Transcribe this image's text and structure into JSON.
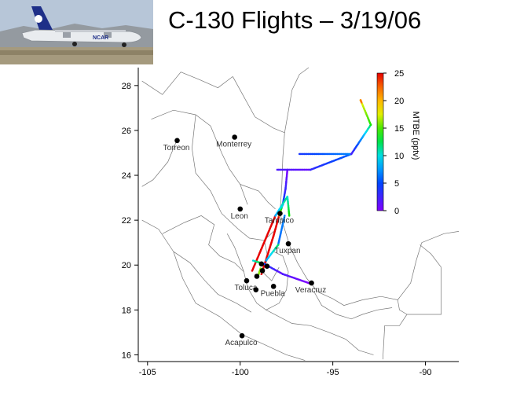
{
  "slide": {
    "title": "C-130 Flights – 3/19/06"
  },
  "photo": {
    "tail_text": "NCAR",
    "colors": {
      "sky": "#b7c6d8",
      "ground": "#a59a7e",
      "aircraft_body": "#e9ecef",
      "aircraft_tail": "#1e2f88"
    }
  },
  "chart_data": {
    "type": "scatter",
    "title": "",
    "xlabel": "",
    "ylabel": "",
    "xlim": [
      -105.5,
      -88.2
    ],
    "ylim": [
      15.7,
      28.8
    ],
    "xticks": [
      -105,
      -100,
      -95,
      -90
    ],
    "yticks": [
      16,
      18,
      20,
      22,
      24,
      26,
      28
    ],
    "grid": false,
    "colorbar": {
      "label": "MTBE (pptv)",
      "min": 0,
      "max": 25,
      "ticks": [
        0,
        5,
        10,
        15,
        20,
        25
      ],
      "colormap": "rainbow"
    },
    "cities": [
      {
        "name": "Torreon",
        "lon": -103.4,
        "lat": 25.55
      },
      {
        "name": "Monterrey",
        "lon": -100.3,
        "lat": 25.7
      },
      {
        "name": "Leon",
        "lon": -100.0,
        "lat": 22.5
      },
      {
        "name": "Tampico",
        "lon": -97.85,
        "lat": 22.3
      },
      {
        "name": "Tuxpan",
        "lon": -97.4,
        "lat": 20.95
      },
      {
        "name": "Toluca",
        "lon": -99.65,
        "lat": 19.3
      },
      {
        "name": "Puebla",
        "lon": -98.2,
        "lat": 19.05
      },
      {
        "name": "Veracruz",
        "lon": -96.15,
        "lat": 19.2
      },
      {
        "name": "Acapulco",
        "lon": -99.9,
        "lat": 16.85
      },
      {
        "name": "",
        "lon": -99.1,
        "lat": 19.5
      },
      {
        "name": "",
        "lon": -98.8,
        "lat": 19.75
      },
      {
        "name": "",
        "lon": -98.85,
        "lat": 20.05
      },
      {
        "name": "",
        "lon": -99.15,
        "lat": 18.9
      },
      {
        "name": "",
        "lon": -98.55,
        "lat": 19.95
      }
    ],
    "flight_legs": [
      {
        "from": [
          -98.85,
          19.6
        ],
        "to": [
          -98.2,
          21.3
        ],
        "mtbe": [
          25,
          25
        ]
      },
      {
        "from": [
          -98.2,
          21.3
        ],
        "to": [
          -97.9,
          22.2
        ],
        "mtbe": [
          25,
          25
        ]
      },
      {
        "from": [
          -97.9,
          22.2
        ],
        "to": [
          -97.7,
          22.7
        ],
        "mtbe": [
          22,
          8
        ]
      },
      {
        "from": [
          -97.7,
          22.7
        ],
        "to": [
          -97.55,
          23.4
        ],
        "mtbe": [
          6,
          2
        ]
      },
      {
        "from": [
          -97.55,
          23.4
        ],
        "to": [
          -97.45,
          24.25
        ],
        "mtbe": [
          3,
          0
        ]
      },
      {
        "from": [
          -98.0,
          24.25
        ],
        "to": [
          -96.2,
          24.25
        ],
        "mtbe": [
          2,
          1
        ]
      },
      {
        "from": [
          -96.2,
          24.25
        ],
        "to": [
          -94.0,
          24.95
        ],
        "mtbe": [
          3,
          6
        ]
      },
      {
        "from": [
          -96.8,
          24.95
        ],
        "to": [
          -94.0,
          24.95
        ],
        "mtbe": [
          4,
          7
        ]
      },
      {
        "from": [
          -94.0,
          24.95
        ],
        "to": [
          -92.95,
          26.25
        ],
        "mtbe": [
          2,
          12
        ]
      },
      {
        "from": [
          -92.95,
          26.25
        ],
        "to": [
          -93.5,
          27.35
        ],
        "mtbe": [
          14,
          18
        ]
      },
      {
        "from": [
          -93.5,
          27.35
        ],
        "to": [
          -93.45,
          27.25
        ],
        "mtbe": [
          22,
          22
        ]
      },
      {
        "from": [
          -99.35,
          19.75
        ],
        "to": [
          -98.1,
          22.2
        ],
        "mtbe": [
          25,
          25
        ]
      },
      {
        "from": [
          -98.1,
          22.2
        ],
        "to": [
          -97.45,
          23.05
        ],
        "mtbe": [
          8,
          12
        ]
      },
      {
        "from": [
          -97.45,
          23.05
        ],
        "to": [
          -97.35,
          22.2
        ],
        "mtbe": [
          10,
          14
        ]
      },
      {
        "from": [
          -97.6,
          22.2
        ],
        "to": [
          -97.95,
          20.9
        ],
        "mtbe": [
          7,
          6
        ]
      },
      {
        "from": [
          -97.95,
          20.9
        ],
        "to": [
          -98.6,
          20.2
        ],
        "mtbe": [
          12,
          8
        ]
      },
      {
        "from": [
          -99.3,
          20.2
        ],
        "to": [
          -98.7,
          20.05
        ],
        "mtbe": [
          10,
          15
        ]
      },
      {
        "from": [
          -98.7,
          20.05
        ],
        "to": [
          -97.7,
          19.6
        ],
        "mtbe": [
          4,
          1
        ]
      },
      {
        "from": [
          -97.7,
          19.6
        ],
        "to": [
          -96.3,
          19.2
        ],
        "mtbe": [
          2,
          0
        ]
      },
      {
        "from": [
          -98.9,
          19.85
        ],
        "to": [
          -99.0,
          19.6
        ],
        "mtbe": [
          16,
          16
        ]
      }
    ]
  }
}
